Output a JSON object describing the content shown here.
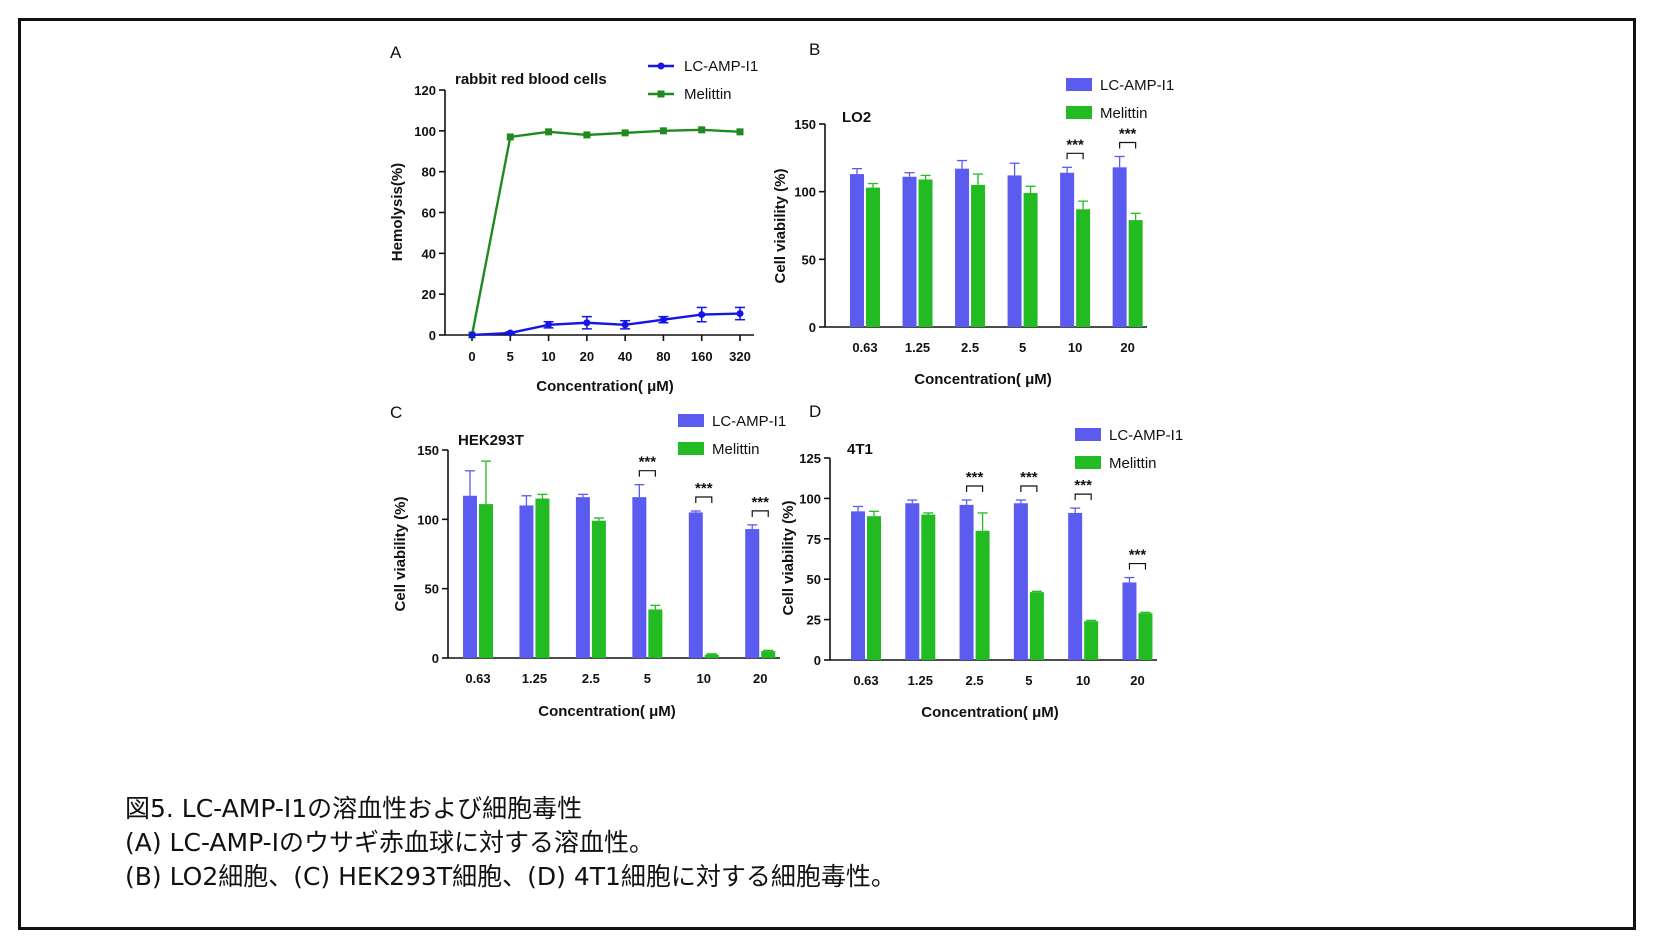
{
  "colors": {
    "lc": "#5B5BF0",
    "mel": "#22BB22",
    "line_lc": "#1515E6",
    "line_mel": "#208A20",
    "axis": "#111111"
  },
  "caption": {
    "line1": "図5. LC-AMP-I1の溶血性および細胞毒性",
    "line2": "(A) LC-AMP-Iのウサギ赤血球に対する溶血性。",
    "line3": "(B) LO2細胞、(C) HEK293T細胞、(D) 4T1細胞に対する細胞毒性。"
  },
  "chart_data": [
    {
      "panel": "A",
      "type": "line",
      "title": "rabbit red blood cells",
      "xlabel": "Concentration( μM)",
      "ylabel": "Hemolysis(%)",
      "ylim": [
        0,
        120
      ],
      "yticks": [
        0,
        20,
        40,
        60,
        80,
        100,
        120
      ],
      "legend_position": "top-right",
      "categories": [
        "0",
        "5",
        "10",
        "20",
        "40",
        "80",
        "160",
        "320"
      ],
      "series": [
        {
          "name": "LC-AMP-I1",
          "values": [
            0,
            1,
            5,
            6,
            5,
            7.5,
            10,
            10.5
          ],
          "errors": [
            0,
            0.5,
            1.5,
            3,
            2,
            1.5,
            3.5,
            3
          ]
        },
        {
          "name": "Melittin",
          "values": [
            0,
            97,
            99.5,
            98,
            99,
            100,
            100.5,
            99.5
          ],
          "errors": [
            0,
            0,
            0,
            0,
            0,
            0,
            0,
            0
          ]
        }
      ]
    },
    {
      "panel": "B",
      "type": "bar",
      "title": "LO2",
      "xlabel": "Concentration( μM)",
      "ylabel": "Cell viability (%)",
      "ylim": [
        0,
        150
      ],
      "yticks": [
        0,
        50,
        100,
        150
      ],
      "legend_position": "top-right",
      "categories": [
        "0.63",
        "1.25",
        "2.5",
        "5",
        "10",
        "20"
      ],
      "series": [
        {
          "name": "LC-AMP-I1",
          "values": [
            113,
            111,
            117,
            112,
            114,
            118
          ],
          "errors": [
            4,
            3,
            6,
            9,
            4,
            8
          ]
        },
        {
          "name": "Melittin",
          "values": [
            103,
            109,
            105,
            99,
            87,
            79
          ],
          "errors": [
            3,
            3,
            8,
            5,
            6,
            5
          ]
        }
      ],
      "significance": [
        {
          "category": "10",
          "label": "***"
        },
        {
          "category": "20",
          "label": "***"
        }
      ]
    },
    {
      "panel": "C",
      "type": "bar",
      "title": "HEK293T",
      "xlabel": "Concentration( μM)",
      "ylabel": "Cell viability (%)",
      "ylim": [
        0,
        150
      ],
      "yticks": [
        0,
        50,
        100,
        150
      ],
      "legend_position": "top-right",
      "categories": [
        "0.63",
        "1.25",
        "2.5",
        "5",
        "10",
        "20"
      ],
      "series": [
        {
          "name": "LC-AMP-I1",
          "values": [
            117,
            110,
            116,
            116,
            105,
            93
          ],
          "errors": [
            18,
            7,
            2,
            9,
            1,
            3
          ]
        },
        {
          "name": "Melittin",
          "values": [
            111,
            115,
            99,
            35,
            2.5,
            5
          ],
          "errors": [
            31,
            3,
            2,
            3,
            0.5,
            0.5
          ]
        }
      ],
      "significance": [
        {
          "category": "5",
          "label": "***"
        },
        {
          "category": "10",
          "label": "***"
        },
        {
          "category": "20",
          "label": "***"
        }
      ]
    },
    {
      "panel": "D",
      "type": "bar",
      "title": "4T1",
      "xlabel": "Concentration( μM)",
      "ylabel": "Cell viability (%)",
      "ylim": [
        0,
        125
      ],
      "yticks": [
        0,
        25,
        50,
        75,
        100,
        125
      ],
      "legend_position": "top-right",
      "categories": [
        "0.63",
        "1.25",
        "2.5",
        "5",
        "10",
        "20"
      ],
      "series": [
        {
          "name": "LC-AMP-I1",
          "values": [
            92,
            97,
            96,
            97,
            91,
            48
          ],
          "errors": [
            3,
            2,
            3,
            2,
            3,
            3
          ]
        },
        {
          "name": "Melittin",
          "values": [
            89,
            90,
            80,
            42,
            24,
            29
          ],
          "errors": [
            3,
            1,
            11,
            0.5,
            0.5,
            0.5
          ]
        }
      ],
      "significance": [
        {
          "category": "2.5",
          "label": "***"
        },
        {
          "category": "5",
          "label": "***"
        },
        {
          "category": "10",
          "label": "***"
        },
        {
          "category": "20",
          "label": "***"
        }
      ]
    }
  ]
}
